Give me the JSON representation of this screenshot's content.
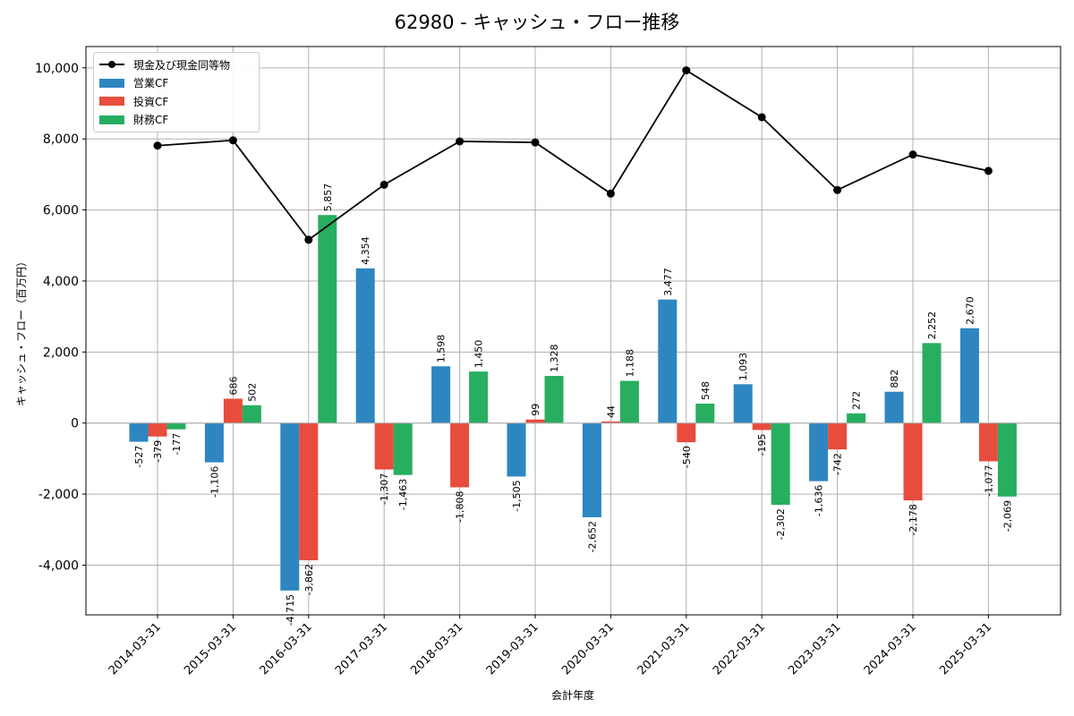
{
  "chart_data": {
    "type": "bar",
    "title": "62980 - キャッシュ・フロー推移",
    "xlabel": "会計年度",
    "ylabel": "キャッシュ・フロー（百万円）",
    "categories": [
      "2014-03-31",
      "2015-03-31",
      "2016-03-31",
      "2017-03-31",
      "2018-03-31",
      "2019-03-31",
      "2020-03-31",
      "2021-03-31",
      "2022-03-31",
      "2023-03-31",
      "2024-03-31",
      "2025-03-31"
    ],
    "ylim": [
      -5400,
      10600
    ],
    "yticks": [
      -4000,
      -2000,
      0,
      2000,
      4000,
      6000,
      8000,
      10000
    ],
    "ytick_labels": [
      "-4,000",
      "-2,000",
      "0",
      "2,000",
      "4,000",
      "6,000",
      "8,000",
      "10,000"
    ],
    "grid": true,
    "legend": "top-left",
    "series": [
      {
        "name": "営業CF",
        "type": "bar",
        "color": "#2e86c1",
        "values": [
          -527,
          -1106,
          -4715,
          4354,
          1598,
          -1505,
          -2652,
          3477,
          1093,
          -1636,
          882,
          2670
        ],
        "labels": [
          "-527",
          "-1,106",
          "-4,715",
          "4,354",
          "1,598",
          "-1,505",
          "-2,652",
          "3,477",
          "1,093",
          "-1,636",
          "882",
          "2,670"
        ]
      },
      {
        "name": "投資CF",
        "type": "bar",
        "color": "#e74c3c",
        "values": [
          -379,
          686,
          -3862,
          -1307,
          -1808,
          99,
          44,
          -540,
          -195,
          -742,
          -2178,
          -1077
        ],
        "labels": [
          "-379",
          "686",
          "-3,862",
          "-1,307",
          "-1,808",
          "99",
          "44",
          "-540",
          "-195",
          "-742",
          "-2,178",
          "-1,077"
        ]
      },
      {
        "name": "財務CF",
        "type": "bar",
        "color": "#27ae60",
        "values": [
          -177,
          502,
          5857,
          -1463,
          1450,
          1328,
          1188,
          548,
          -2302,
          272,
          2252,
          -2069
        ],
        "labels": [
          "-177",
          "502",
          "5,857",
          "-1,463",
          "1,450",
          "1,328",
          "1,188",
          "548",
          "-2,302",
          "272",
          "2,252",
          "-2,069"
        ]
      },
      {
        "name": "現金及び現金同等物",
        "type": "line",
        "color": "#000000",
        "values": [
          7810,
          7960,
          5160,
          6710,
          7930,
          7900,
          6460,
          9930,
          8610,
          6560,
          7560,
          7100
        ]
      }
    ]
  }
}
